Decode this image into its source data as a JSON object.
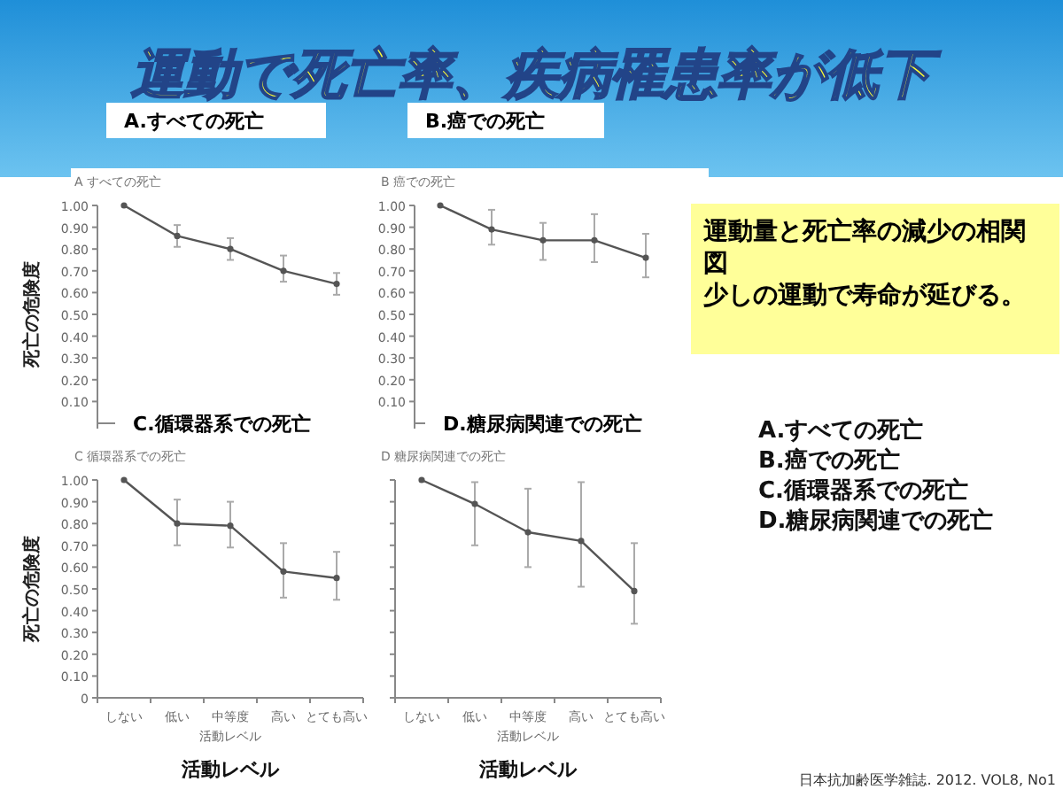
{
  "chart_data": [
    {
      "type": "other",
      "title": "運動で死亡率、疾病罹患率が低下",
      "annotations": [
        "運動量と死亡率の減少の相関図",
        "少しの運動で寿命が延びる。",
        "A.すべての死亡",
        "B.癌での死亡",
        "C.循環器系での死亡",
        "D.糖尿病関連での死亡",
        "日本抗加齢医学雑誌. 2012. VOL8, No1"
      ]
    },
    {
      "type": "line",
      "title": "A.すべての死亡",
      "subtitle": "A すべての死亡",
      "ylabel": "死亡の危険度",
      "categories": [
        null,
        null,
        null,
        null,
        null
      ],
      "values": [
        1.0,
        0.86,
        0.8,
        0.7,
        0.64
      ],
      "errors": [
        null,
        [
          0.81,
          0.91
        ],
        [
          0.75,
          0.85
        ],
        [
          0.65,
          0.77
        ],
        [
          0.59,
          0.69
        ]
      ],
      "color": "#555555",
      "marker": "circle",
      "ylim": [
        0,
        1
      ],
      "yticks": [
        {
          "value": 0.1,
          "label": "0.10"
        },
        {
          "value": 0.2,
          "label": "0.20"
        },
        {
          "value": 0.3,
          "label": "0.30"
        },
        {
          "value": 0.4,
          "label": "0.40"
        },
        {
          "value": 0.5,
          "label": "0.50"
        },
        {
          "value": 0.6,
          "label": "0.60"
        },
        {
          "value": 0.7,
          "label": "0.70"
        },
        {
          "value": 0.8,
          "label": "0.80"
        },
        {
          "value": 0.9,
          "label": "0.90"
        },
        {
          "value": 1,
          "label": "1.00"
        }
      ],
      "tick_labels": "y"
    },
    {
      "type": "line",
      "title": "B.癌での死亡",
      "subtitle": "B 癌での死亡",
      "categories": [
        null,
        null,
        null,
        null,
        null
      ],
      "values": [
        1.0,
        0.89,
        0.84,
        0.84,
        0.76
      ],
      "errors": [
        null,
        [
          0.82,
          0.98
        ],
        [
          0.75,
          0.92
        ],
        [
          0.74,
          0.96
        ],
        [
          0.67,
          0.87
        ]
      ],
      "color": "#555555",
      "marker": "circle",
      "ylim": [
        0,
        1
      ],
      "yticks": [
        {
          "value": 0.1,
          "label": "0.10"
        },
        {
          "value": 0.2,
          "label": "0.20"
        },
        {
          "value": 0.3,
          "label": "0.30"
        },
        {
          "value": 0.4,
          "label": "0.40"
        },
        {
          "value": 0.5,
          "label": "0.50"
        },
        {
          "value": 0.6,
          "label": "0.60"
        },
        {
          "value": 0.7,
          "label": "0.70"
        },
        {
          "value": 0.8,
          "label": "0.80"
        },
        {
          "value": 0.9,
          "label": "0.90"
        },
        {
          "value": 1,
          "label": "1.00"
        }
      ],
      "tick_labels": "y"
    },
    {
      "type": "line",
      "title": "C.循環器系での死亡",
      "subtitle": "C 循環器系での死亡",
      "ylabel": "死亡の危険度",
      "xlabel": "活動レベル",
      "annotations": [
        "活動レベル"
      ],
      "categories": [
        "しない",
        "低い",
        "中等度",
        "高い",
        "とても高い"
      ],
      "values": [
        1.0,
        0.8,
        0.79,
        0.58,
        0.55
      ],
      "errors": [
        null,
        [
          0.7,
          0.91
        ],
        [
          0.69,
          0.9
        ],
        [
          0.46,
          0.71
        ],
        [
          0.45,
          0.67
        ]
      ],
      "color": "#555555",
      "marker": "circle",
      "ylim": [
        0,
        1
      ],
      "yticks": [
        0,
        {
          "value": 0.1,
          "label": "0.10"
        },
        {
          "value": 0.2,
          "label": "0.20"
        },
        {
          "value": 0.3,
          "label": "0.30"
        },
        {
          "value": 0.4,
          "label": "0.40"
        },
        {
          "value": 0.5,
          "label": "0.50"
        },
        {
          "value": 0.6,
          "label": "0.60"
        },
        {
          "value": 0.7,
          "label": "0.70"
        },
        {
          "value": 0.8,
          "label": "0.80"
        },
        {
          "value": 0.9,
          "label": "0.90"
        },
        {
          "value": 1,
          "label": "1.00"
        }
      ]
    },
    {
      "type": "line",
      "title": "D.糖尿病関連での死亡",
      "subtitle": "D 糖尿病関連での死亡",
      "xlabel": "活動レベル",
      "annotations": [
        "活動レベル"
      ],
      "categories": [
        "しない",
        "低い",
        "中等度",
        "高い",
        "とても高い"
      ],
      "values": [
        1.0,
        0.89,
        0.76,
        0.72,
        0.49
      ],
      "errors": [
        null,
        [
          0.7,
          0.99
        ],
        [
          0.6,
          0.96
        ],
        [
          0.51,
          0.99
        ],
        [
          0.34,
          0.71
        ]
      ],
      "color": "#555555",
      "marker": "circle",
      "ylim": [
        0,
        1
      ],
      "yticks": [
        0,
        {
          "value": 0.1,
          "label": null
        },
        {
          "value": 0.2,
          "label": null
        },
        {
          "value": 0.3,
          "label": null
        },
        {
          "value": 0.4,
          "label": null
        },
        {
          "value": 0.5,
          "label": null
        },
        {
          "value": 0.6,
          "label": null
        },
        {
          "value": 0.7,
          "label": null
        },
        {
          "value": 0.8,
          "label": null
        },
        {
          "value": 0.9,
          "label": null
        },
        {
          "value": 1,
          "label": null
        }
      ],
      "tick_labels": "x"
    }
  ]
}
